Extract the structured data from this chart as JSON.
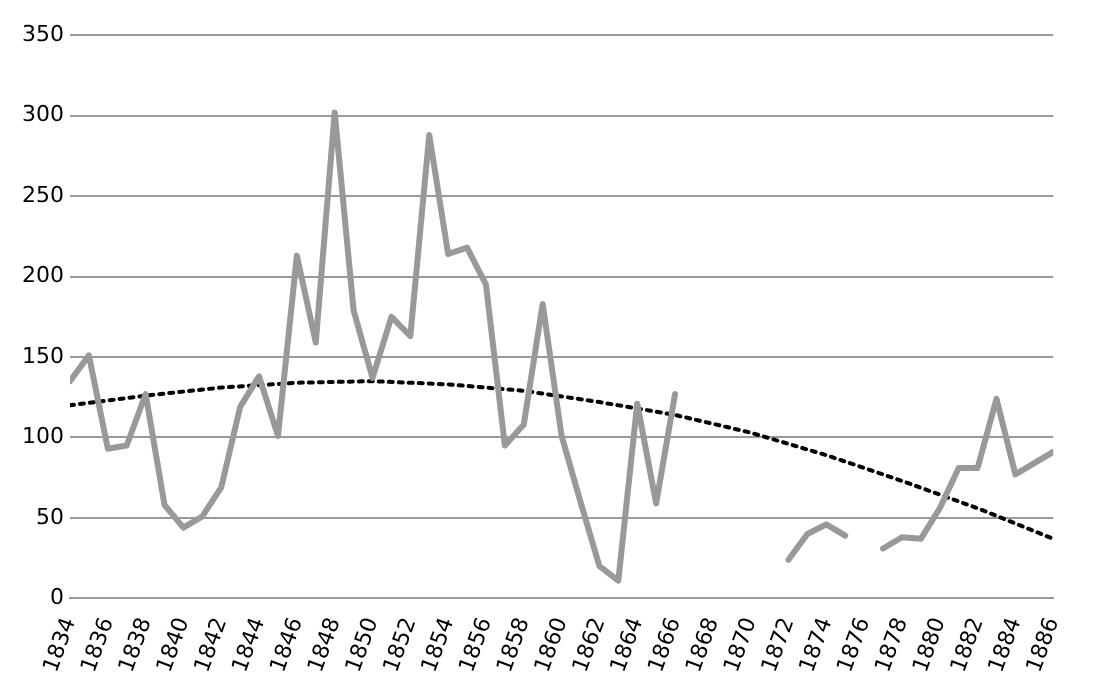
{
  "chart_data": {
    "type": "line",
    "xlim": [
      1834,
      1886
    ],
    "xticks": [
      1834,
      1836,
      1838,
      1840,
      1842,
      1844,
      1846,
      1848,
      1850,
      1852,
      1854,
      1856,
      1858,
      1860,
      1862,
      1864,
      1866,
      1868,
      1870,
      1872,
      1874,
      1876,
      1878,
      1880,
      1882,
      1884,
      1886
    ],
    "ylim": [
      0,
      350
    ],
    "yticks": [
      0,
      50,
      100,
      150,
      200,
      250,
      300,
      350
    ],
    "grid": "y",
    "legend": false,
    "marker": "none",
    "series": [
      {
        "color": "#999999",
        "line_style": "solid",
        "x": [
          1834,
          1835,
          1836,
          1837,
          1838,
          1839,
          1840,
          1841,
          1842,
          1843,
          1844,
          1845,
          1846,
          1847,
          1848,
          1849,
          1850,
          1851,
          1852,
          1853,
          1854,
          1855,
          1856,
          1857,
          1858,
          1859,
          1860,
          1861,
          1862,
          1863,
          1864,
          1865,
          1866,
          1867,
          1868,
          1869,
          1870,
          1871,
          1872,
          1873,
          1874,
          1875,
          1876,
          1877,
          1878,
          1879,
          1880,
          1881,
          1882,
          1883,
          1884,
          1885,
          1886
        ],
        "values": [
          135,
          151,
          93,
          95,
          127,
          58,
          44,
          51,
          69,
          119,
          138,
          101,
          213,
          159,
          302,
          179,
          137,
          175,
          163,
          288,
          214,
          218,
          195,
          95,
          108,
          183,
          101,
          60,
          20,
          11,
          121,
          59,
          127,
          null,
          null,
          null,
          null,
          null,
          24,
          40,
          46,
          39,
          null,
          31,
          38,
          37,
          56,
          81,
          81,
          124,
          77,
          84,
          91
        ]
      },
      {
        "type": "line",
        "color": "#000000",
        "line_style": "dotted",
        "x": [
          1834,
          1838,
          1842,
          1846,
          1850,
          1854,
          1858,
          1862,
          1866,
          1870,
          1874,
          1878,
          1882,
          1886
        ],
        "values": [
          120,
          126,
          131,
          134,
          135,
          133,
          129,
          122,
          114,
          103,
          89,
          73,
          56,
          37
        ]
      }
    ]
  }
}
